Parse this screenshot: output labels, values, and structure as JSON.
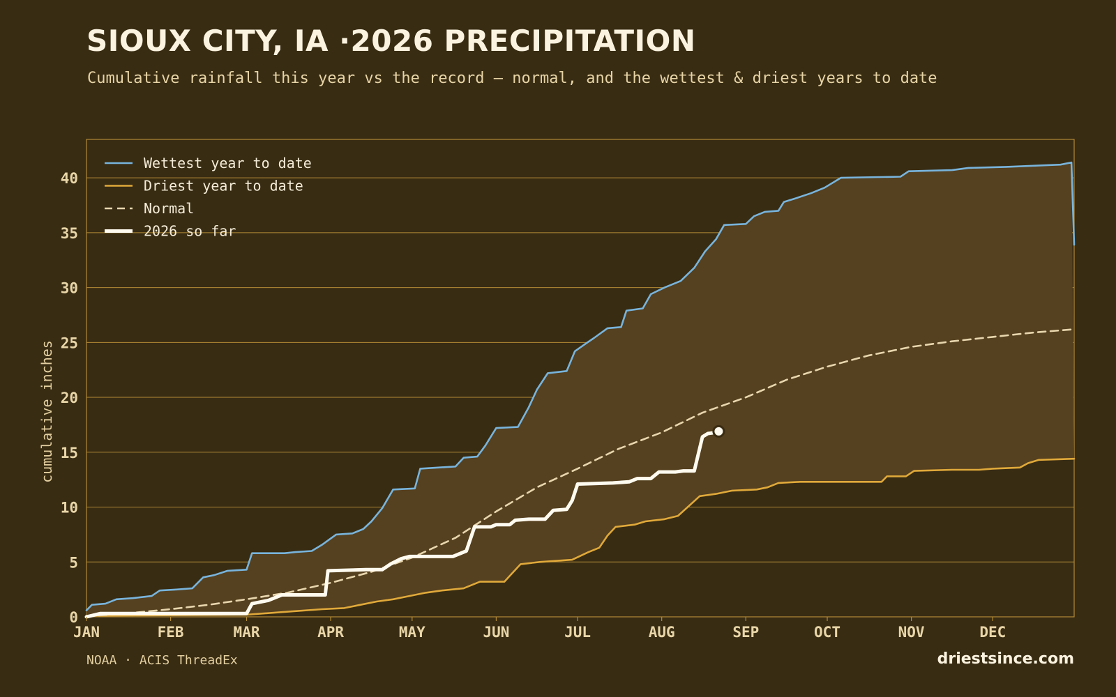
{
  "header": {
    "title": "SIOUX CITY, IA ·2026 PRECIPITATION",
    "subtitle": "Cumulative rainfall this year vs the record — normal, and the wettest & driest years to date"
  },
  "footer": {
    "source": "NOAA · ACIS ThreadEx",
    "brand": "driestsince.com"
  },
  "colors": {
    "background": "#382c13",
    "band_fill": "#55401f",
    "grid": "#b38a36",
    "wettest": "#78b4dc",
    "driest": "#e0a93a",
    "normal": "#e8d6ae",
    "current": "#fffbf0"
  },
  "chart_data": {
    "type": "line",
    "title": "SIOUX CITY, IA ·2026 PRECIPITATION",
    "xlabel": "",
    "ylabel": "cumulative inches",
    "ylim": [
      0,
      43.5
    ],
    "yticks": [
      0,
      5,
      10,
      15,
      20,
      25,
      30,
      35,
      40
    ],
    "x_unit": "day of year",
    "xlim": [
      1,
      365
    ],
    "month_ticks": [
      {
        "label": "JAN",
        "day": 1
      },
      {
        "label": "FEB",
        "day": 32
      },
      {
        "label": "MAR",
        "day": 60
      },
      {
        "label": "APR",
        "day": 91
      },
      {
        "label": "MAY",
        "day": 121
      },
      {
        "label": "JUN",
        "day": 152
      },
      {
        "label": "JUL",
        "day": 182
      },
      {
        "label": "AUG",
        "day": 213
      },
      {
        "label": "SEP",
        "day": 244
      },
      {
        "label": "OCT",
        "day": 274
      },
      {
        "label": "NOV",
        "day": 305
      },
      {
        "label": "DEC",
        "day": 335
      }
    ],
    "legend_position": "top-left",
    "grid": true,
    "series": [
      {
        "name": "Wettest year to date",
        "style": "solid",
        "points": [
          [
            1,
            0.6
          ],
          [
            3,
            1.1
          ],
          [
            8,
            1.2
          ],
          [
            12,
            1.6
          ],
          [
            18,
            1.7
          ],
          [
            25,
            1.9
          ],
          [
            28,
            2.4
          ],
          [
            35,
            2.5
          ],
          [
            40,
            2.6
          ],
          [
            44,
            3.6
          ],
          [
            48,
            3.8
          ],
          [
            53,
            4.2
          ],
          [
            60,
            4.3
          ],
          [
            62,
            5.8
          ],
          [
            74,
            5.8
          ],
          [
            78,
            5.9
          ],
          [
            84,
            6.0
          ],
          [
            88,
            6.6
          ],
          [
            93,
            7.5
          ],
          [
            99,
            7.6
          ],
          [
            103,
            8.0
          ],
          [
            106,
            8.7
          ],
          [
            110,
            9.9
          ],
          [
            114,
            11.6
          ],
          [
            122,
            11.7
          ],
          [
            124,
            13.5
          ],
          [
            137,
            13.7
          ],
          [
            140,
            14.5
          ],
          [
            145,
            14.6
          ],
          [
            148,
            15.6
          ],
          [
            152,
            17.2
          ],
          [
            160,
            17.3
          ],
          [
            164,
            19.1
          ],
          [
            167,
            20.7
          ],
          [
            171,
            22.2
          ],
          [
            178,
            22.4
          ],
          [
            181,
            24.2
          ],
          [
            185,
            24.9
          ],
          [
            188,
            25.4
          ],
          [
            193,
            26.3
          ],
          [
            198,
            26.4
          ],
          [
            200,
            27.9
          ],
          [
            206,
            28.1
          ],
          [
            209,
            29.4
          ],
          [
            214,
            30.0
          ],
          [
            220,
            30.6
          ],
          [
            225,
            31.8
          ],
          [
            229,
            33.3
          ],
          [
            233,
            34.4
          ],
          [
            236,
            35.7
          ],
          [
            244,
            35.8
          ],
          [
            247,
            36.5
          ],
          [
            251,
            36.9
          ],
          [
            256,
            37.0
          ],
          [
            258,
            37.8
          ],
          [
            262,
            38.1
          ],
          [
            268,
            38.6
          ],
          [
            273,
            39.1
          ],
          [
            279,
            40.0
          ],
          [
            301,
            40.1
          ],
          [
            304,
            40.6
          ],
          [
            320,
            40.7
          ],
          [
            326,
            40.9
          ],
          [
            340,
            41.0
          ],
          [
            350,
            41.1
          ],
          [
            360,
            41.2
          ],
          [
            364,
            41.4
          ],
          [
            365,
            33.9
          ]
        ]
      },
      {
        "name": "Driest year to date",
        "style": "solid",
        "points": [
          [
            1,
            0.1
          ],
          [
            60,
            0.2
          ],
          [
            77,
            0.5
          ],
          [
            88,
            0.7
          ],
          [
            96,
            0.8
          ],
          [
            102,
            1.1
          ],
          [
            108,
            1.4
          ],
          [
            114,
            1.6
          ],
          [
            120,
            1.9
          ],
          [
            126,
            2.2
          ],
          [
            132,
            2.4
          ],
          [
            140,
            2.6
          ],
          [
            146,
            3.2
          ],
          [
            155,
            3.2
          ],
          [
            158,
            4.0
          ],
          [
            161,
            4.8
          ],
          [
            168,
            5.0
          ],
          [
            180,
            5.2
          ],
          [
            186,
            5.9
          ],
          [
            190,
            6.3
          ],
          [
            193,
            7.4
          ],
          [
            196,
            8.2
          ],
          [
            203,
            8.4
          ],
          [
            207,
            8.7
          ],
          [
            214,
            8.9
          ],
          [
            219,
            9.2
          ],
          [
            227,
            11.0
          ],
          [
            233,
            11.2
          ],
          [
            239,
            11.5
          ],
          [
            248,
            11.6
          ],
          [
            252,
            11.8
          ],
          [
            256,
            12.2
          ],
          [
            264,
            12.3
          ],
          [
            278,
            12.3
          ],
          [
            294,
            12.3
          ],
          [
            296,
            12.8
          ],
          [
            303,
            12.8
          ],
          [
            306,
            13.3
          ],
          [
            320,
            13.4
          ],
          [
            330,
            13.4
          ],
          [
            335,
            13.5
          ],
          [
            345,
            13.6
          ],
          [
            348,
            14.0
          ],
          [
            352,
            14.3
          ],
          [
            365,
            14.4
          ]
        ]
      },
      {
        "name": "Normal",
        "style": "dashed",
        "points": [
          [
            1,
            0.05
          ],
          [
            15,
            0.3
          ],
          [
            32,
            0.7
          ],
          [
            46,
            1.1
          ],
          [
            60,
            1.6
          ],
          [
            75,
            2.2
          ],
          [
            91,
            3.1
          ],
          [
            106,
            4.1
          ],
          [
            121,
            5.4
          ],
          [
            137,
            7.2
          ],
          [
            152,
            9.6
          ],
          [
            167,
            11.8
          ],
          [
            182,
            13.5
          ],
          [
            197,
            15.3
          ],
          [
            213,
            16.8
          ],
          [
            228,
            18.6
          ],
          [
            244,
            20.0
          ],
          [
            259,
            21.6
          ],
          [
            274,
            22.8
          ],
          [
            289,
            23.8
          ],
          [
            305,
            24.6
          ],
          [
            320,
            25.1
          ],
          [
            335,
            25.5
          ],
          [
            350,
            25.9
          ],
          [
            365,
            26.2
          ]
        ]
      },
      {
        "name": "2026 so far",
        "style": "bold",
        "points": [
          [
            1,
            0.0
          ],
          [
            6,
            0.3
          ],
          [
            60,
            0.3
          ],
          [
            62,
            1.2
          ],
          [
            68,
            1.5
          ],
          [
            73,
            2.0
          ],
          [
            83,
            2.0
          ],
          [
            89,
            2.0
          ],
          [
            90,
            4.2
          ],
          [
            104,
            4.3
          ],
          [
            110,
            4.3
          ],
          [
            113,
            4.8
          ],
          [
            117,
            5.3
          ],
          [
            120,
            5.5
          ],
          [
            136,
            5.5
          ],
          [
            141,
            6.0
          ],
          [
            144,
            8.2
          ],
          [
            150,
            8.2
          ],
          [
            152,
            8.4
          ],
          [
            157,
            8.4
          ],
          [
            159,
            8.8
          ],
          [
            164,
            8.9
          ],
          [
            170,
            8.9
          ],
          [
            173,
            9.7
          ],
          [
            178,
            9.8
          ],
          [
            180,
            10.6
          ],
          [
            182,
            12.1
          ],
          [
            195,
            12.2
          ],
          [
            201,
            12.3
          ],
          [
            204,
            12.6
          ],
          [
            209,
            12.6
          ],
          [
            212,
            13.2
          ],
          [
            218,
            13.2
          ],
          [
            221,
            13.3
          ],
          [
            225,
            13.3
          ],
          [
            228,
            16.4
          ],
          [
            230,
            16.7
          ],
          [
            233,
            16.8
          ],
          [
            234,
            16.9
          ]
        ]
      }
    ]
  }
}
